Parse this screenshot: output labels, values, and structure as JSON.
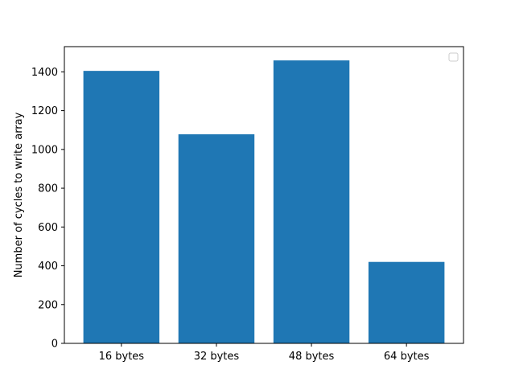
{
  "chart_data": {
    "type": "bar",
    "title": "",
    "xlabel": "",
    "ylabel": "Number of cycles to write array",
    "categories": [
      "16 bytes",
      "32 bytes",
      "48 bytes",
      "64 bytes"
    ],
    "values": [
      1405,
      1078,
      1459,
      420
    ],
    "ylim": [
      0,
      1530
    ],
    "yticks": [
      0,
      200,
      400,
      600,
      800,
      1000,
      1200,
      1400
    ],
    "ytick_labels": [
      "0",
      "200",
      "400",
      "600",
      "800",
      "1000",
      "1200",
      "1400"
    ],
    "grid": false,
    "legend": {
      "placement": "top-right",
      "entries": []
    },
    "colors": {
      "bar": "#1f77b4",
      "axes": "#000000",
      "background": "#ffffff"
    }
  }
}
